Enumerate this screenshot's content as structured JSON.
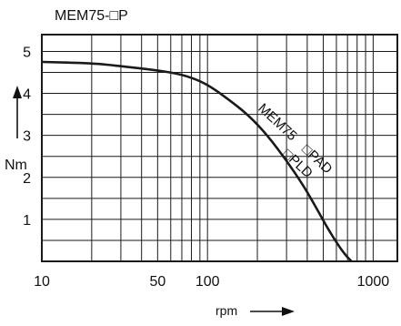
{
  "chart_data": {
    "type": "line",
    "title": "MEM75-□P",
    "xlabel": "rpm",
    "ylabel": "Nm",
    "x_scale": "log",
    "xlim": [
      10,
      1400
    ],
    "ylim": [
      0,
      5.4
    ],
    "x_ticks": [
      10,
      50,
      100,
      1000
    ],
    "x_tick_labels": [
      "10",
      "50",
      "100",
      "1000"
    ],
    "y_ticks": [
      1,
      2,
      3,
      4,
      5
    ],
    "y_tick_labels": [
      "1",
      "2",
      "3",
      "4",
      "5"
    ],
    "x_grid": [
      10,
      20,
      30,
      40,
      50,
      60,
      70,
      80,
      90,
      100,
      200,
      300,
      400,
      500,
      600,
      700,
      800,
      900,
      1000
    ],
    "y_grid": [
      0.5,
      1,
      1.5,
      2,
      2.5,
      3,
      3.5,
      4,
      4.5,
      5
    ],
    "grid": true,
    "series": [
      {
        "name": "MEM75 □PAD □PLD",
        "name_lines": [
          "MEM75",
          "□PAD",
          "□PLD"
        ],
        "x": [
          10,
          20,
          30,
          50,
          70,
          90,
          110,
          140,
          180,
          230,
          300,
          380,
          450,
          520,
          600,
          680,
          740
        ],
        "y": [
          4.75,
          4.72,
          4.65,
          4.55,
          4.45,
          4.3,
          4.1,
          3.8,
          3.45,
          3.0,
          2.4,
          1.8,
          1.3,
          0.85,
          0.45,
          0.15,
          0.0
        ]
      }
    ]
  },
  "colors": {
    "line": "#1a1a1a",
    "background": "#ffffff"
  },
  "icons": {
    "y_arrow": "arrow-up-icon",
    "x_arrow": "arrow-right-icon"
  }
}
